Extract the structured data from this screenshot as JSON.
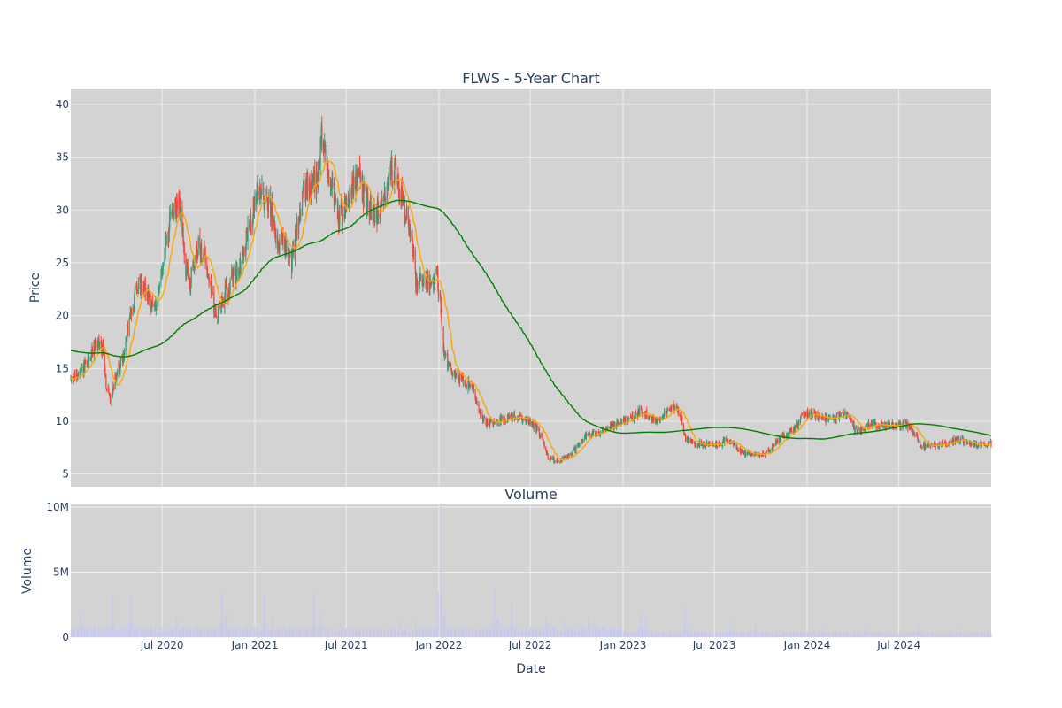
{
  "chart_data": {
    "type": "candlestick",
    "ticker": "FLWS",
    "title": "FLWS - 5-Year Chart",
    "price_panel": {
      "ylabel": "Price",
      "ylim": [
        3.8,
        41.5
      ],
      "yticks": [
        5,
        10,
        15,
        20,
        25,
        30,
        35,
        40
      ],
      "ytick_labels": [
        "5",
        "10",
        "15",
        "20",
        "25",
        "30",
        "35",
        "40"
      ],
      "background": "#d3d3d3",
      "grid": true
    },
    "volume_panel": {
      "title": "Volume",
      "ylabel": "Volume",
      "ylim": [
        0,
        10200000
      ],
      "yticks": [
        0,
        5000000,
        10000000
      ],
      "ytick_labels": [
        "0",
        "5M",
        "10M"
      ],
      "bar_color": "#c8c8f0",
      "background": "#d3d3d3",
      "grid": true
    },
    "xlabel": "Date",
    "x_range": [
      "2020-01-02",
      "2024-12-31"
    ],
    "x_ticks": [
      {
        "date": "2020-07-01",
        "label": "Jul 2020"
      },
      {
        "date": "2021-01-01",
        "label": "Jan 2021"
      },
      {
        "date": "2021-07-01",
        "label": "Jul 2021"
      },
      {
        "date": "2022-01-01",
        "label": "Jan 2022"
      },
      {
        "date": "2022-07-01",
        "label": "Jul 2022"
      },
      {
        "date": "2023-01-01",
        "label": "Jan 2023"
      },
      {
        "date": "2023-07-01",
        "label": "Jul 2023"
      },
      {
        "date": "2024-01-01",
        "label": "Jan 2024"
      },
      {
        "date": "2024-07-01",
        "label": "Jul 2024"
      }
    ],
    "price_anchors": [
      [
        "2020-01-02",
        14.0
      ],
      [
        "2020-01-20",
        14.5
      ],
      [
        "2020-02-05",
        15.5
      ],
      [
        "2020-02-20",
        17.5
      ],
      [
        "2020-03-05",
        17.0
      ],
      [
        "2020-03-12",
        13.5
      ],
      [
        "2020-03-20",
        12.0
      ],
      [
        "2020-04-01",
        14.5
      ],
      [
        "2020-04-15",
        16.0
      ],
      [
        "2020-04-25",
        19.0
      ],
      [
        "2020-05-10",
        22.5
      ],
      [
        "2020-05-25",
        23.0
      ],
      [
        "2020-06-10",
        21.0
      ],
      [
        "2020-06-20",
        20.5
      ],
      [
        "2020-07-05",
        26.0
      ],
      [
        "2020-07-20",
        29.5
      ],
      [
        "2020-08-05",
        30.5
      ],
      [
        "2020-08-15",
        25.0
      ],
      [
        "2020-08-25",
        23.0
      ],
      [
        "2020-09-10",
        26.5
      ],
      [
        "2020-09-25",
        25.5
      ],
      [
        "2020-10-15",
        20.0
      ],
      [
        "2020-10-25",
        21.0
      ],
      [
        "2020-11-10",
        23.0
      ],
      [
        "2020-11-25",
        24.0
      ],
      [
        "2020-12-10",
        26.0
      ],
      [
        "2020-12-25",
        29.5
      ],
      [
        "2021-01-10",
        32.0
      ],
      [
        "2021-01-20",
        31.0
      ],
      [
        "2021-02-01",
        30.5
      ],
      [
        "2021-02-15",
        27.0
      ],
      [
        "2021-03-01",
        27.0
      ],
      [
        "2021-03-15",
        25.0
      ],
      [
        "2021-04-05",
        31.5
      ],
      [
        "2021-04-20",
        32.0
      ],
      [
        "2021-05-05",
        33.0
      ],
      [
        "2021-05-15",
        37.5
      ],
      [
        "2021-05-25",
        34.0
      ],
      [
        "2021-06-05",
        32.0
      ],
      [
        "2021-06-15",
        29.0
      ],
      [
        "2021-06-25",
        30.0
      ],
      [
        "2021-07-10",
        32.0
      ],
      [
        "2021-07-25",
        33.0
      ],
      [
        "2021-08-10",
        31.0
      ],
      [
        "2021-08-25",
        29.5
      ],
      [
        "2021-09-10",
        30.0
      ],
      [
        "2021-09-25",
        34.0
      ],
      [
        "2021-10-10",
        33.0
      ],
      [
        "2021-10-25",
        30.0
      ],
      [
        "2021-11-10",
        27.0
      ],
      [
        "2021-11-18",
        22.5
      ],
      [
        "2021-12-01",
        23.5
      ],
      [
        "2021-12-15",
        23.0
      ],
      [
        "2021-12-28",
        24.0
      ],
      [
        "2022-01-05",
        20.5
      ],
      [
        "2022-01-10",
        16.5
      ],
      [
        "2022-01-25",
        15.0
      ],
      [
        "2022-02-10",
        14.0
      ],
      [
        "2022-02-25",
        13.5
      ],
      [
        "2022-03-10",
        13.0
      ],
      [
        "2022-03-20",
        11.0
      ],
      [
        "2022-04-05",
        9.8
      ],
      [
        "2022-04-25",
        10.0
      ],
      [
        "2022-05-15",
        10.3
      ],
      [
        "2022-06-10",
        10.5
      ],
      [
        "2022-06-25",
        10.2
      ],
      [
        "2022-07-10",
        9.5
      ],
      [
        "2022-07-25",
        8.5
      ],
      [
        "2022-08-05",
        6.5
      ],
      [
        "2022-08-25",
        6.3
      ],
      [
        "2022-09-15",
        6.7
      ],
      [
        "2022-10-01",
        7.5
      ],
      [
        "2022-10-15",
        8.5
      ],
      [
        "2022-10-30",
        8.8
      ],
      [
        "2022-11-15",
        8.9
      ],
      [
        "2022-12-01",
        9.5
      ],
      [
        "2022-12-20",
        9.8
      ],
      [
        "2023-01-05",
        10.2
      ],
      [
        "2023-01-20",
        10.3
      ],
      [
        "2023-02-05",
        11.0
      ],
      [
        "2023-02-20",
        10.5
      ],
      [
        "2023-03-10",
        10.0
      ],
      [
        "2023-03-25",
        10.8
      ],
      [
        "2023-04-10",
        11.5
      ],
      [
        "2023-04-25",
        10.5
      ],
      [
        "2023-05-05",
        8.3
      ],
      [
        "2023-05-20",
        8.0
      ],
      [
        "2023-06-10",
        7.8
      ],
      [
        "2023-06-25",
        7.9
      ],
      [
        "2023-07-10",
        7.8
      ],
      [
        "2023-07-25",
        8.3
      ],
      [
        "2023-08-10",
        7.7
      ],
      [
        "2023-08-25",
        7.0
      ],
      [
        "2023-09-10",
        6.9
      ],
      [
        "2023-09-25",
        6.8
      ],
      [
        "2023-10-10",
        6.9
      ],
      [
        "2023-10-25",
        7.6
      ],
      [
        "2023-11-10",
        8.6
      ],
      [
        "2023-11-25",
        8.7
      ],
      [
        "2023-12-10",
        9.5
      ],
      [
        "2023-12-25",
        10.6
      ],
      [
        "2024-01-10",
        10.8
      ],
      [
        "2024-01-25",
        10.3
      ],
      [
        "2024-02-10",
        10.2
      ],
      [
        "2024-02-25",
        10.4
      ],
      [
        "2024-03-10",
        10.5
      ],
      [
        "2024-03-20",
        10.7
      ],
      [
        "2024-04-05",
        9.2
      ],
      [
        "2024-04-20",
        9.0
      ],
      [
        "2024-05-05",
        9.8
      ],
      [
        "2024-05-20",
        9.6
      ],
      [
        "2024-06-10",
        9.7
      ],
      [
        "2024-06-25",
        9.6
      ],
      [
        "2024-07-10",
        9.8
      ],
      [
        "2024-07-25",
        9.4
      ],
      [
        "2024-08-05",
        8.8
      ],
      [
        "2024-08-15",
        7.6
      ],
      [
        "2024-09-01",
        7.8
      ],
      [
        "2024-09-20",
        7.7
      ],
      [
        "2024-10-10",
        8.0
      ],
      [
        "2024-10-25",
        8.4
      ],
      [
        "2024-11-10",
        8.0
      ],
      [
        "2024-11-25",
        7.9
      ],
      [
        "2024-12-10",
        7.7
      ],
      [
        "2024-12-31",
        7.9
      ]
    ],
    "volume_spikes": [
      [
        "2020-01-22",
        1800000
      ],
      [
        "2020-03-25",
        3000000
      ],
      [
        "2020-05-01",
        3000000
      ],
      [
        "2020-07-30",
        1500000
      ],
      [
        "2020-10-28",
        3300000
      ],
      [
        "2020-11-05",
        1800000
      ],
      [
        "2021-01-20",
        3200000
      ],
      [
        "2021-02-05",
        1500000
      ],
      [
        "2021-04-28",
        3300000
      ],
      [
        "2021-05-10",
        1800000
      ],
      [
        "2021-10-15",
        1200000
      ],
      [
        "2021-11-15",
        1500000
      ],
      [
        "2022-01-03",
        10000000
      ],
      [
        "2022-01-12",
        2000000
      ],
      [
        "2022-04-22",
        3800000
      ],
      [
        "2022-04-28",
        1500000
      ],
      [
        "2022-05-25",
        2600000
      ],
      [
        "2022-08-02",
        1500000
      ],
      [
        "2022-09-10",
        1400000
      ],
      [
        "2022-10-25",
        1500000
      ],
      [
        "2023-02-05",
        2000000
      ],
      [
        "2023-02-15",
        1600000
      ],
      [
        "2023-05-04",
        2200000
      ],
      [
        "2023-08-05",
        1100000
      ],
      [
        "2023-09-20",
        900000
      ],
      [
        "2024-02-01",
        700000
      ],
      [
        "2024-04-25",
        600000
      ],
      [
        "2024-08-08",
        900000
      ],
      [
        "2024-11-01",
        700000
      ]
    ],
    "series": [
      {
        "kind": "candlestick",
        "increasing_color": "#3d9970",
        "decreasing_color": "#ff4136"
      },
      {
        "kind": "moving-average",
        "color": "#ffa500"
      },
      {
        "kind": "moving-average",
        "color": "#008000"
      },
      {
        "kind": "volume-bars",
        "color": "#c8c8f0"
      }
    ]
  }
}
